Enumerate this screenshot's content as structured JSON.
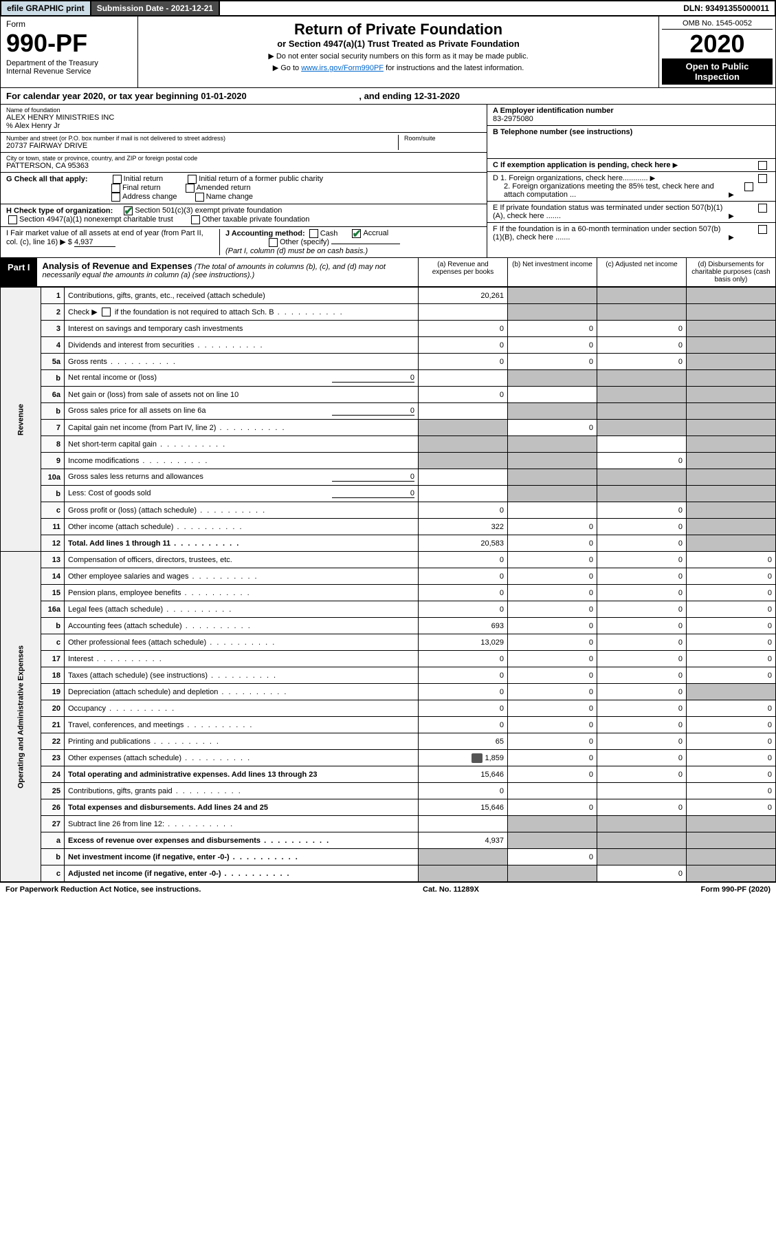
{
  "topbar": {
    "efile": "efile GRAPHIC print",
    "subdate_label": "Submission Date - 2021-12-21",
    "dln": "DLN: 93491355000011"
  },
  "header": {
    "form_label": "Form",
    "form_no": "990-PF",
    "dept": "Department of the Treasury\nInternal Revenue Service",
    "title": "Return of Private Foundation",
    "subtitle": "or Section 4947(a)(1) Trust Treated as Private Foundation",
    "instr1": "▶ Do not enter social security numbers on this form as it may be made public.",
    "instr2_pre": "▶ Go to ",
    "instr2_link": "www.irs.gov/Form990PF",
    "instr2_post": " for instructions and the latest information.",
    "omb": "OMB No. 1545-0052",
    "year": "2020",
    "open": "Open to Public Inspection"
  },
  "cal": {
    "text_pre": "For calendar year 2020, or tax year beginning ",
    "begin": "01-01-2020",
    "mid": " , and ending ",
    "end": "12-31-2020"
  },
  "info": {
    "name_lbl": "Name of foundation",
    "name": "ALEX HENRY MINISTRIES INC",
    "care_of": "% Alex Henry Jr",
    "addr_lbl": "Number and street (or P.O. box number if mail is not delivered to street address)",
    "addr": "20737 FAIRWAY DRIVE",
    "room_lbl": "Room/suite",
    "city_lbl": "City or town, state or province, country, and ZIP or foreign postal code",
    "city": "PATTERSON, CA  95363",
    "ein_lbl": "A Employer identification number",
    "ein": "83-2975080",
    "tel_lbl": "B Telephone number (see instructions)",
    "c_lbl": "C If exemption application is pending, check here",
    "d1": "D 1. Foreign organizations, check here............",
    "d2": "2. Foreign organizations meeting the 85% test, check here and attach computation ...",
    "e_lbl": "E  If private foundation status was terminated under section 507(b)(1)(A), check here .......",
    "f_lbl": "F  If the foundation is in a 60-month termination under section 507(b)(1)(B), check here .......",
    "g_lbl": "G Check all that apply:",
    "g_initial": "Initial return",
    "g_initial_former": "Initial return of a former public charity",
    "g_final": "Final return",
    "g_amended": "Amended return",
    "g_addr": "Address change",
    "g_name": "Name change",
    "h_lbl": "H Check type of organization:",
    "h_501": "Section 501(c)(3) exempt private foundation",
    "h_4947": "Section 4947(a)(1) nonexempt charitable trust",
    "h_other": "Other taxable private foundation",
    "i_lbl": "I Fair market value of all assets at end of year (from Part II, col. (c), line 16)",
    "i_val": "4,937",
    "j_lbl": "J Accounting method:",
    "j_cash": "Cash",
    "j_accrual": "Accrual",
    "j_other": "Other (specify)",
    "j_note": "(Part I, column (d) must be on cash basis.)"
  },
  "part1": {
    "label": "Part I",
    "title": "Analysis of Revenue and Expenses",
    "note": " (The total of amounts in columns (b), (c), and (d) may not necessarily equal the amounts in column (a) (see instructions).)",
    "col_a": "(a)  Revenue and expenses per books",
    "col_b": "(b)  Net investment income",
    "col_c": "(c)  Adjusted net income",
    "col_d": "(d)  Disbursements for charitable purposes (cash basis only)"
  },
  "sides": {
    "rev": "Revenue",
    "exp": "Operating and Administrative Expenses"
  },
  "rows": {
    "r1": {
      "ln": "1",
      "desc": "Contributions, gifts, grants, etc., received (attach schedule)",
      "a": "20,261"
    },
    "r2": {
      "ln": "2",
      "desc_pre": "Check ▶ ",
      "desc_post": " if the foundation is not required to attach Sch. B"
    },
    "r3": {
      "ln": "3",
      "desc": "Interest on savings and temporary cash investments",
      "a": "0",
      "b": "0",
      "c": "0"
    },
    "r4": {
      "ln": "4",
      "desc": "Dividends and interest from securities",
      "a": "0",
      "b": "0",
      "c": "0"
    },
    "r5a": {
      "ln": "5a",
      "desc": "Gross rents",
      "a": "0",
      "b": "0",
      "c": "0"
    },
    "r5b": {
      "ln": "b",
      "desc": "Net rental income or (loss)",
      "inline": "0"
    },
    "r6a": {
      "ln": "6a",
      "desc": "Net gain or (loss) from sale of assets not on line 10",
      "a": "0"
    },
    "r6b": {
      "ln": "b",
      "desc": "Gross sales price for all assets on line 6a",
      "inline": "0"
    },
    "r7": {
      "ln": "7",
      "desc": "Capital gain net income (from Part IV, line 2)",
      "b": "0"
    },
    "r8": {
      "ln": "8",
      "desc": "Net short-term capital gain"
    },
    "r9": {
      "ln": "9",
      "desc": "Income modifications",
      "c": "0"
    },
    "r10a": {
      "ln": "10a",
      "desc": "Gross sales less returns and allowances",
      "inline": "0"
    },
    "r10b": {
      "ln": "b",
      "desc": "Less: Cost of goods sold",
      "inline": "0"
    },
    "r10c": {
      "ln": "c",
      "desc": "Gross profit or (loss) (attach schedule)",
      "a": "0",
      "c": "0"
    },
    "r11": {
      "ln": "11",
      "desc": "Other income (attach schedule)",
      "a": "322",
      "b": "0",
      "c": "0"
    },
    "r12": {
      "ln": "12",
      "desc": "Total. Add lines 1 through 11",
      "a": "20,583",
      "b": "0",
      "c": "0"
    },
    "r13": {
      "ln": "13",
      "desc": "Compensation of officers, directors, trustees, etc.",
      "a": "0",
      "b": "0",
      "c": "0",
      "d": "0"
    },
    "r14": {
      "ln": "14",
      "desc": "Other employee salaries and wages",
      "a": "0",
      "b": "0",
      "c": "0",
      "d": "0"
    },
    "r15": {
      "ln": "15",
      "desc": "Pension plans, employee benefits",
      "a": "0",
      "b": "0",
      "c": "0",
      "d": "0"
    },
    "r16a": {
      "ln": "16a",
      "desc": "Legal fees (attach schedule)",
      "a": "0",
      "b": "0",
      "c": "0",
      "d": "0"
    },
    "r16b": {
      "ln": "b",
      "desc": "Accounting fees (attach schedule)",
      "a": "693",
      "b": "0",
      "c": "0",
      "d": "0"
    },
    "r16c": {
      "ln": "c",
      "desc": "Other professional fees (attach schedule)",
      "a": "13,029",
      "b": "0",
      "c": "0",
      "d": "0"
    },
    "r17": {
      "ln": "17",
      "desc": "Interest",
      "a": "0",
      "b": "0",
      "c": "0",
      "d": "0"
    },
    "r18": {
      "ln": "18",
      "desc": "Taxes (attach schedule) (see instructions)",
      "a": "0",
      "b": "0",
      "c": "0",
      "d": "0"
    },
    "r19": {
      "ln": "19",
      "desc": "Depreciation (attach schedule) and depletion",
      "a": "0",
      "b": "0",
      "c": "0"
    },
    "r20": {
      "ln": "20",
      "desc": "Occupancy",
      "a": "0",
      "b": "0",
      "c": "0",
      "d": "0"
    },
    "r21": {
      "ln": "21",
      "desc": "Travel, conferences, and meetings",
      "a": "0",
      "b": "0",
      "c": "0",
      "d": "0"
    },
    "r22": {
      "ln": "22",
      "desc": "Printing and publications",
      "a": "65",
      "b": "0",
      "c": "0",
      "d": "0"
    },
    "r23": {
      "ln": "23",
      "desc": "Other expenses (attach schedule)",
      "a": "1,859",
      "b": "0",
      "c": "0",
      "d": "0",
      "icon": true
    },
    "r24": {
      "ln": "24",
      "desc": "Total operating and administrative expenses. Add lines 13 through 23",
      "a": "15,646",
      "b": "0",
      "c": "0",
      "d": "0"
    },
    "r25": {
      "ln": "25",
      "desc": "Contributions, gifts, grants paid",
      "a": "0",
      "d": "0"
    },
    "r26": {
      "ln": "26",
      "desc": "Total expenses and disbursements. Add lines 24 and 25",
      "a": "15,646",
      "b": "0",
      "c": "0",
      "d": "0"
    },
    "r27": {
      "ln": "27",
      "desc": "Subtract line 26 from line 12:"
    },
    "r27a": {
      "ln": "a",
      "desc": "Excess of revenue over expenses and disbursements",
      "a": "4,937"
    },
    "r27b": {
      "ln": "b",
      "desc": "Net investment income (if negative, enter -0-)",
      "b": "0"
    },
    "r27c": {
      "ln": "c",
      "desc": "Adjusted net income (if negative, enter -0-)",
      "c": "0"
    }
  },
  "footer": {
    "left": "For Paperwork Reduction Act Notice, see instructions.",
    "mid": "Cat. No. 11289X",
    "right": "Form 990-PF (2020)"
  }
}
